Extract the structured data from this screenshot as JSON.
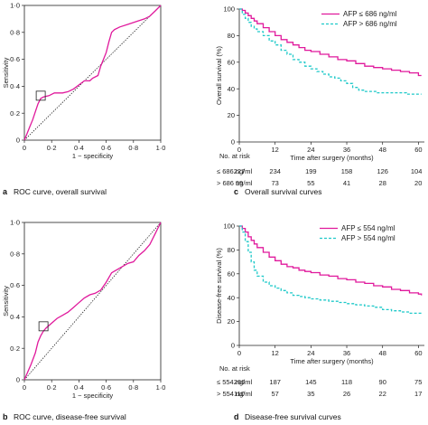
{
  "chart_data": [
    {
      "id": "a",
      "type": "line",
      "panel_label": "a",
      "caption": "ROC curve, overall survival",
      "xlabel": "1 − specificity",
      "ylabel": "Sensitivity",
      "xlim": [
        0,
        1
      ],
      "ylim": [
        0,
        1
      ],
      "xticks": [
        "0",
        "0·2",
        "0·4",
        "0·6",
        "0·8",
        "1·0"
      ],
      "yticks": [
        "0",
        "0·2",
        "0·4",
        "0·6",
        "0·8",
        "1·0"
      ],
      "diagonal": true,
      "curve_color": "#e0199c",
      "cutoff_marker": [
        0.12,
        0.33
      ],
      "curve": [
        [
          0,
          0
        ],
        [
          0.02,
          0.05
        ],
        [
          0.04,
          0.1
        ],
        [
          0.06,
          0.15
        ],
        [
          0.08,
          0.21
        ],
        [
          0.1,
          0.27
        ],
        [
          0.12,
          0.31
        ],
        [
          0.14,
          0.32
        ],
        [
          0.18,
          0.33
        ],
        [
          0.22,
          0.35
        ],
        [
          0.28,
          0.35
        ],
        [
          0.32,
          0.36
        ],
        [
          0.36,
          0.38
        ],
        [
          0.4,
          0.41
        ],
        [
          0.44,
          0.44
        ],
        [
          0.48,
          0.44
        ],
        [
          0.5,
          0.46
        ],
        [
          0.54,
          0.48
        ],
        [
          0.56,
          0.55
        ],
        [
          0.58,
          0.6
        ],
        [
          0.6,
          0.65
        ],
        [
          0.62,
          0.73
        ],
        [
          0.64,
          0.8
        ],
        [
          0.66,
          0.82
        ],
        [
          0.7,
          0.84
        ],
        [
          0.76,
          0.86
        ],
        [
          0.82,
          0.88
        ],
        [
          0.88,
          0.9
        ],
        [
          0.92,
          0.92
        ],
        [
          0.96,
          0.96
        ],
        [
          1,
          1
        ]
      ]
    },
    {
      "id": "b",
      "type": "line",
      "panel_label": "b",
      "caption": "ROC curve, disease-free survival",
      "xlabel": "1 − specificity",
      "ylabel": "Sensitivity",
      "xlim": [
        0,
        1
      ],
      "ylim": [
        0,
        1
      ],
      "xticks": [
        "0",
        "0·2",
        "0·4",
        "0·6",
        "0·8",
        "1·0"
      ],
      "yticks": [
        "0",
        "0·2",
        "0·4",
        "0·6",
        "0·8",
        "1·0"
      ],
      "diagonal": true,
      "curve_color": "#e0199c",
      "cutoff_marker": [
        0.14,
        0.34
      ],
      "curve": [
        [
          0,
          0
        ],
        [
          0.02,
          0.04
        ],
        [
          0.05,
          0.1
        ],
        [
          0.08,
          0.17
        ],
        [
          0.1,
          0.24
        ],
        [
          0.12,
          0.28
        ],
        [
          0.14,
          0.31
        ],
        [
          0.16,
          0.33
        ],
        [
          0.2,
          0.36
        ],
        [
          0.24,
          0.39
        ],
        [
          0.28,
          0.41
        ],
        [
          0.32,
          0.43
        ],
        [
          0.36,
          0.46
        ],
        [
          0.4,
          0.49
        ],
        [
          0.44,
          0.52
        ],
        [
          0.48,
          0.54
        ],
        [
          0.52,
          0.55
        ],
        [
          0.56,
          0.57
        ],
        [
          0.6,
          0.62
        ],
        [
          0.64,
          0.68
        ],
        [
          0.68,
          0.7
        ],
        [
          0.72,
          0.72
        ],
        [
          0.76,
          0.74
        ],
        [
          0.8,
          0.75
        ],
        [
          0.84,
          0.79
        ],
        [
          0.88,
          0.82
        ],
        [
          0.92,
          0.86
        ],
        [
          0.96,
          0.93
        ],
        [
          1,
          1
        ]
      ]
    },
    {
      "id": "c",
      "type": "line",
      "panel_label": "c",
      "caption": "Overall survival curves",
      "xlabel": "Time after surgery (months)",
      "ylabel": "Overall survival (%)",
      "xlim": [
        0,
        62
      ],
      "ylim": [
        0,
        100
      ],
      "xticks": [
        0,
        12,
        24,
        36,
        48,
        60
      ],
      "yticks": [
        0,
        20,
        40,
        60,
        80,
        100
      ],
      "series": [
        {
          "name": "AFP ≤ 686 ng/ml",
          "color": "#e0199c",
          "dash": false,
          "points": [
            [
              0,
              100
            ],
            [
              1,
              99
            ],
            [
              2,
              97
            ],
            [
              3,
              95
            ],
            [
              4,
              93
            ],
            [
              5,
              91
            ],
            [
              6,
              89
            ],
            [
              8,
              86
            ],
            [
              10,
              83
            ],
            [
              12,
              80
            ],
            [
              14,
              77
            ],
            [
              16,
              75
            ],
            [
              18,
              73
            ],
            [
              20,
              71
            ],
            [
              22,
              69
            ],
            [
              24,
              68
            ],
            [
              27,
              66
            ],
            [
              30,
              64
            ],
            [
              33,
              62
            ],
            [
              36,
              61
            ],
            [
              39,
              59
            ],
            [
              42,
              57
            ],
            [
              45,
              56
            ],
            [
              48,
              55
            ],
            [
              51,
              54
            ],
            [
              54,
              53
            ],
            [
              57,
              52
            ],
            [
              60,
              50
            ],
            [
              61,
              50
            ]
          ]
        },
        {
          "name": "AFP > 686 ng/ml",
          "color": "#1fc9c9",
          "dash": true,
          "points": [
            [
              0,
              100
            ],
            [
              1,
              96
            ],
            [
              2,
              93
            ],
            [
              3,
              90
            ],
            [
              4,
              87
            ],
            [
              5,
              85
            ],
            [
              6,
              83
            ],
            [
              8,
              80
            ],
            [
              10,
              76
            ],
            [
              12,
              73
            ],
            [
              14,
              69
            ],
            [
              16,
              66
            ],
            [
              18,
              62
            ],
            [
              20,
              60
            ],
            [
              22,
              57
            ],
            [
              24,
              55
            ],
            [
              26,
              53
            ],
            [
              28,
              51
            ],
            [
              30,
              49
            ],
            [
              32,
              48
            ],
            [
              34,
              46
            ],
            [
              36,
              44
            ],
            [
              38,
              41
            ],
            [
              40,
              39
            ],
            [
              42,
              38
            ],
            [
              44,
              38
            ],
            [
              46,
              37
            ],
            [
              48,
              37
            ],
            [
              52,
              37
            ],
            [
              56,
              36
            ],
            [
              61,
              36
            ]
          ]
        }
      ],
      "risk_table": {
        "title": "No. at risk",
        "rows": [
          {
            "label": "≤ 686 ng/ml",
            "values": [
              "227",
              "234",
              "199",
              "158",
              "126",
              "104"
            ]
          },
          {
            "label": "> 686 ng/ml",
            "values": [
              "99",
              "73",
              "55",
              "41",
              "28",
              "20"
            ]
          }
        ]
      }
    },
    {
      "id": "d",
      "type": "line",
      "panel_label": "d",
      "caption": "Disease-free survival curves",
      "xlabel": "Time after surgery (months)",
      "ylabel": "Disease-free survival (%)",
      "xlim": [
        0,
        62
      ],
      "ylim": [
        0,
        100
      ],
      "xticks": [
        0,
        12,
        24,
        36,
        48,
        60
      ],
      "yticks": [
        0,
        20,
        40,
        60,
        80,
        100
      ],
      "series": [
        {
          "name": "AFP ≤ 554 ng/ml",
          "color": "#e0199c",
          "dash": false,
          "points": [
            [
              0,
              100
            ],
            [
              1,
              98
            ],
            [
              2,
              95
            ],
            [
              3,
              91
            ],
            [
              4,
              88
            ],
            [
              5,
              85
            ],
            [
              6,
              82
            ],
            [
              8,
              78
            ],
            [
              10,
              74
            ],
            [
              12,
              71
            ],
            [
              14,
              68
            ],
            [
              16,
              66
            ],
            [
              18,
              65
            ],
            [
              20,
              63
            ],
            [
              22,
              62
            ],
            [
              24,
              61
            ],
            [
              27,
              59
            ],
            [
              30,
              58
            ],
            [
              33,
              56
            ],
            [
              36,
              55
            ],
            [
              39,
              53
            ],
            [
              42,
              52
            ],
            [
              45,
              50
            ],
            [
              48,
              49
            ],
            [
              51,
              47
            ],
            [
              54,
              46
            ],
            [
              57,
              44
            ],
            [
              60,
              43
            ],
            [
              61,
              42
            ]
          ]
        },
        {
          "name": "AFP > 554 ng/ml",
          "color": "#1fc9c9",
          "dash": true,
          "points": [
            [
              0,
              100
            ],
            [
              1,
              95
            ],
            [
              2,
              87
            ],
            [
              3,
              78
            ],
            [
              4,
              70
            ],
            [
              5,
              63
            ],
            [
              6,
              58
            ],
            [
              8,
              53
            ],
            [
              10,
              50
            ],
            [
              12,
              48
            ],
            [
              14,
              46
            ],
            [
              16,
              44
            ],
            [
              18,
              42
            ],
            [
              20,
              41
            ],
            [
              22,
              40
            ],
            [
              24,
              39
            ],
            [
              27,
              38
            ],
            [
              30,
              37
            ],
            [
              33,
              36
            ],
            [
              36,
              35
            ],
            [
              39,
              34
            ],
            [
              42,
              33
            ],
            [
              45,
              32
            ],
            [
              48,
              30
            ],
            [
              51,
              29
            ],
            [
              54,
              28
            ],
            [
              57,
              27
            ],
            [
              61,
              27
            ]
          ]
        }
      ],
      "risk_table": {
        "title": "No. at risk",
        "rows": [
          {
            "label": "≤ 554 ng/ml",
            "values": [
              "266",
              "187",
              "145",
              "118",
              "90",
              "75"
            ]
          },
          {
            "label": "> 554 ng/ml",
            "values": [
              "110",
              "57",
              "35",
              "26",
              "22",
              "17"
            ]
          }
        ]
      }
    }
  ]
}
